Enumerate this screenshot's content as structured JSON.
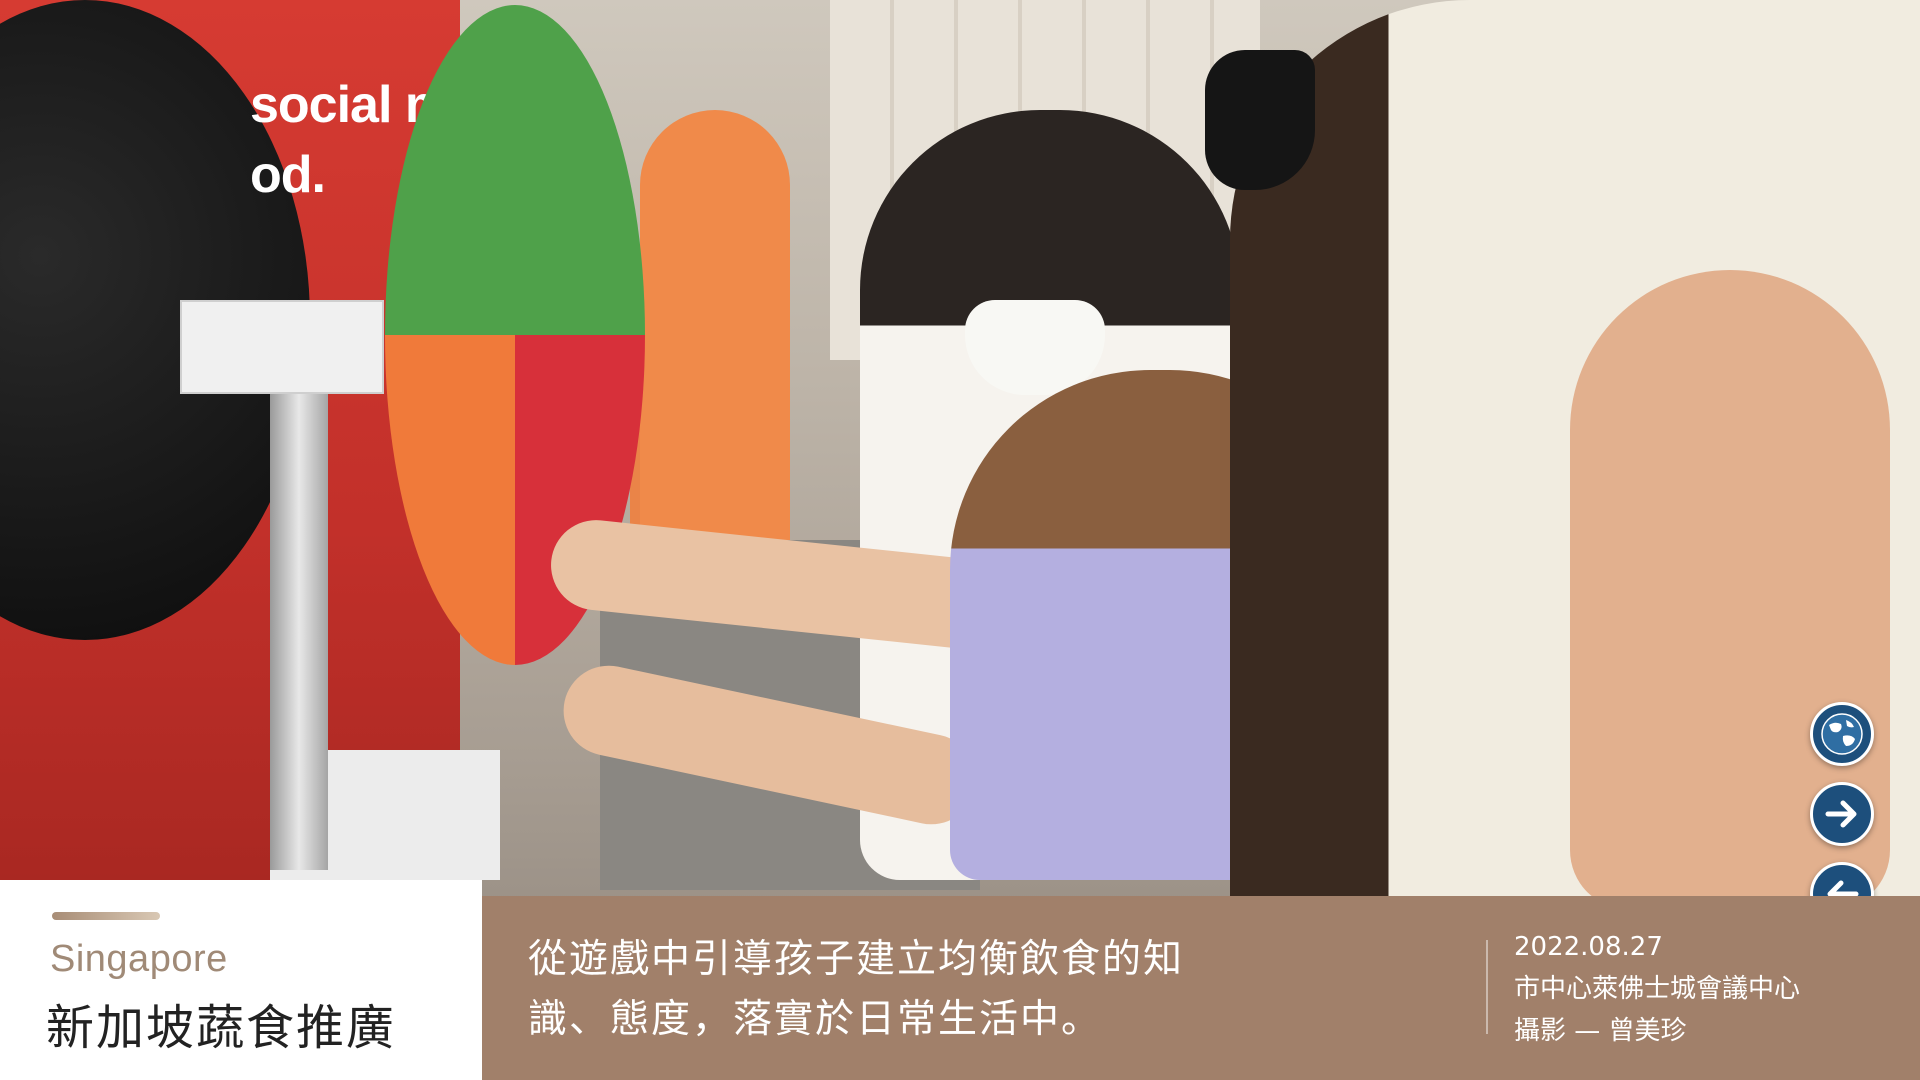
{
  "photo": {
    "sign_text": "social m\nod.",
    "description": "Child placing vegetable food cards on a colour wheel game"
  },
  "nav": {
    "globe_icon": "globe-icon",
    "next_icon": "arrow-right-icon",
    "prev_icon": "arrow-left-icon"
  },
  "caption": {
    "location_en": "Singapore",
    "location_zh": "新加坡蔬食推廣",
    "description_line1": "從遊戲中引導孩子建立均衡飲食的知",
    "description_line2": "識、態度，落實於日常生活中。",
    "date": "2022.08.27",
    "venue": "市中心萊佛士城會議中心",
    "photographer": "攝影 — 曾美珍"
  },
  "colors": {
    "caption_brown": "#a1806a",
    "nav_blue": "#1d4f7c",
    "location_en": "#a08a77"
  }
}
